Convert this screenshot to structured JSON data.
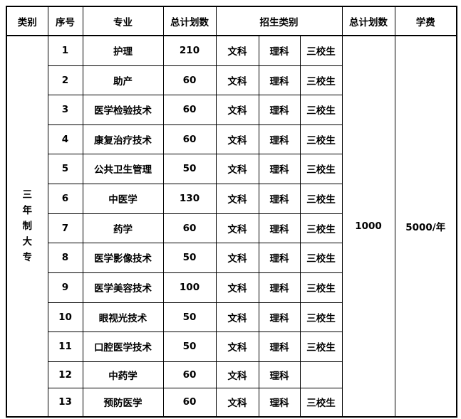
{
  "header": {
    "category": "类别",
    "no": "序号",
    "major": "专业",
    "planned_total": "总计划数",
    "enroll_type": "招生类别",
    "grand_total": "总计划数",
    "tuition": "学费"
  },
  "category_label": [
    "三",
    "年",
    "制",
    "大",
    "专"
  ],
  "grand_total_value": "1000",
  "tuition_value": "5000/年",
  "rows": [
    {
      "no": "1",
      "major": "护理",
      "plan": "210",
      "t1": "文科",
      "t2": "理科",
      "t3": "三校生"
    },
    {
      "no": "2",
      "major": "助产",
      "plan": "60",
      "t1": "文科",
      "t2": "理科",
      "t3": "三校生"
    },
    {
      "no": "3",
      "major": "医学检验技术",
      "plan": "60",
      "t1": "文科",
      "t2": "理科",
      "t3": "三校生"
    },
    {
      "no": "4",
      "major": "康复治疗技术",
      "plan": "60",
      "t1": "文科",
      "t2": "理科",
      "t3": "三校生"
    },
    {
      "no": "5",
      "major": "公共卫生管理",
      "plan": "50",
      "t1": "文科",
      "t2": "理科",
      "t3": "三校生"
    },
    {
      "no": "6",
      "major": "中医学",
      "plan": "130",
      "t1": "文科",
      "t2": "理科",
      "t3": "三校生"
    },
    {
      "no": "7",
      "major": "药学",
      "plan": "60",
      "t1": "文科",
      "t2": "理科",
      "t3": "三校生"
    },
    {
      "no": "8",
      "major": "医学影像技术",
      "plan": "50",
      "t1": "文科",
      "t2": "理科",
      "t3": "三校生"
    },
    {
      "no": "9",
      "major": "医学美容技术",
      "plan": "100",
      "t1": "文科",
      "t2": "理科",
      "t3": "三校生"
    },
    {
      "no": "10",
      "major": "眼视光技术",
      "plan": "50",
      "t1": "文科",
      "t2": "理科",
      "t3": "三校生"
    },
    {
      "no": "11",
      "major": "口腔医学技术",
      "plan": "50",
      "t1": "文科",
      "t2": "理科",
      "t3": "三校生"
    },
    {
      "no": "12",
      "major": "中药学",
      "plan": "60",
      "t1": "文科",
      "t2": "理科",
      "t3": ""
    },
    {
      "no": "13",
      "major": "预防医学",
      "plan": "60",
      "t1": "文科",
      "t2": "理科",
      "t3": "三校生"
    }
  ]
}
